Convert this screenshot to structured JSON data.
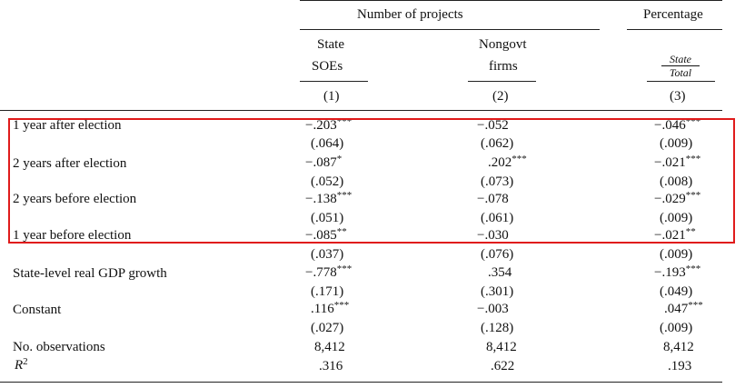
{
  "header": {
    "group1": "Number of projects",
    "group2": "Percentage",
    "col1_line1": "State",
    "col1_line2": "SOEs",
    "col2_line1": "Nongovt",
    "col2_line2": "firms",
    "col3_num": "State",
    "col3_den": "Total",
    "col1_num": "(1)",
    "col2_num": "(2)",
    "col3_num_label": "(3)"
  },
  "rows": [
    {
      "label": "1 year after election",
      "c1": "−.203",
      "s1": "***",
      "c2": "−.052",
      "s2": "",
      "c3": "−.046",
      "s3": "***",
      "se1": "(.064)",
      "se2": "(.062)",
      "se3": "(.009)"
    },
    {
      "label": "2 years after election",
      "c1": "−.087",
      "s1": "*",
      "c2": ".202",
      "s2": "***",
      "c3": "−.021",
      "s3": "***",
      "se1": "(.052)",
      "se2": "(.073)",
      "se3": "(.008)"
    },
    {
      "label": "2 years before election",
      "c1": "−.138",
      "s1": "***",
      "c2": "−.078",
      "s2": "",
      "c3": "−.029",
      "s3": "***",
      "se1": "(.051)",
      "se2": "(.061)",
      "se3": "(.009)"
    },
    {
      "label": "1 year before election",
      "c1": "−.085",
      "s1": "**",
      "c2": "−.030",
      "s2": "",
      "c3": "−.021",
      "s3": "**",
      "se1": "(.037)",
      "se2": "(.076)",
      "se3": "(.009)"
    },
    {
      "label": "State-level real GDP growth",
      "c1": "−.778",
      "s1": "***",
      "c2": ".354",
      "s2": "",
      "c3": "−.193",
      "s3": "***",
      "se1": "(.171)",
      "se2": "(.301)",
      "se3": "(.049)"
    },
    {
      "label": "Constant",
      "c1": ".116",
      "s1": "***",
      "c2": "−.003",
      "s2": "",
      "c3": ".047",
      "s3": "***",
      "se1": "(.027)",
      "se2": "(.128)",
      "se3": "(.009)"
    }
  ],
  "footer": {
    "obs_label": "No. observations",
    "obs1": "8,412",
    "obs2": "8,412",
    "obs3": "8,412",
    "r2_label": "R",
    "r2_sup": "2",
    "r2_1": ".316",
    "r2_2": ".622",
    "r2_3": ".193"
  },
  "highlight_color": "#e01b1b"
}
